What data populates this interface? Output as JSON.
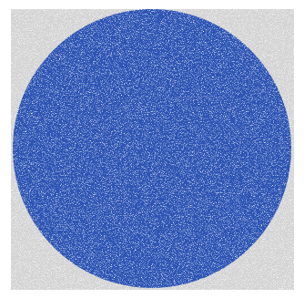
{
  "chart_data": {
    "type": "scatter",
    "series": [
      {
        "color": "#2f55b4"
      },
      {
        "color": "#d4d4d4"
      }
    ]
  }
}
